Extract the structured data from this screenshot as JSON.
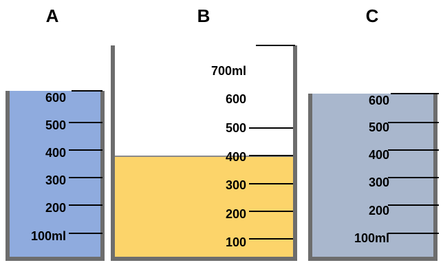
{
  "containers": [
    {
      "label": "A",
      "colors": {
        "liquid": "#8fabde",
        "wall": "#6d6d6d"
      },
      "fill_fraction": 1.0,
      "scale_labels": [
        "600",
        "500",
        "400",
        "300",
        "200",
        "100ml"
      ]
    },
    {
      "label": "B",
      "colors": {
        "liquid": "#fcd46a",
        "empty": "#ffffff",
        "wall": "#6d6d6d"
      },
      "fill_level_ml": 400,
      "scale_labels": [
        "700ml",
        "600",
        "500",
        "400",
        "300",
        "200",
        "100"
      ]
    },
    {
      "label": "C",
      "colors": {
        "liquid": "#a9b7cd",
        "wall": "#6d6d6d"
      },
      "fill_fraction": 1.0,
      "scale_labels": [
        "600",
        "500",
        "400",
        "300",
        "200",
        "100ml"
      ]
    }
  ]
}
